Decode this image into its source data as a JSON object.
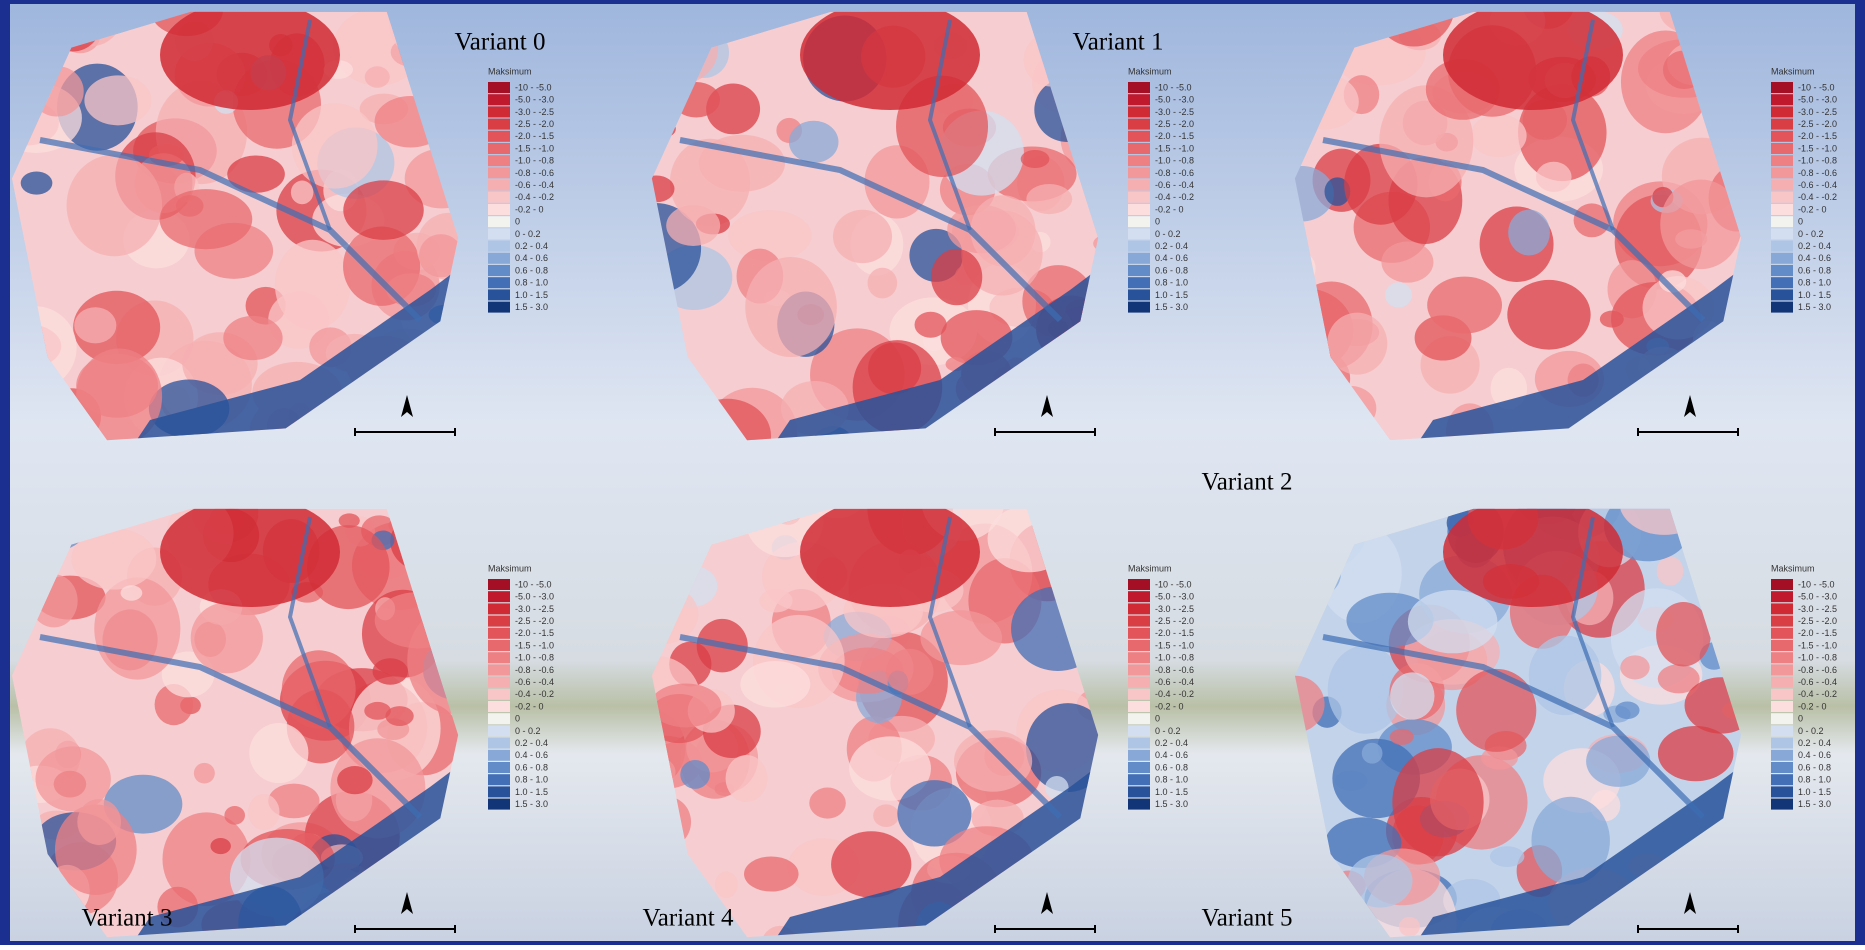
{
  "panels": [
    {
      "label": "Variant 0"
    },
    {
      "label": "Variant 1"
    },
    {
      "label": "Variant 2"
    },
    {
      "label": "Variant 3"
    },
    {
      "label": "Variant 4"
    },
    {
      "label": "Variant 5"
    }
  ],
  "legend": {
    "title": "Maksimum",
    "items": [
      {
        "label": "-10 - -5.0",
        "color": "#a50f25"
      },
      {
        "label": "-5.0 - -3.0",
        "color": "#c0182c"
      },
      {
        "label": "-3.0 - -2.5",
        "color": "#d02a34"
      },
      {
        "label": "-2.5 - -2.0",
        "color": "#da3e45"
      },
      {
        "label": "-2.0 - -1.5",
        "color": "#e25459"
      },
      {
        "label": "-1.5 - -1.0",
        "color": "#e8696d"
      },
      {
        "label": "-1.0 - -0.8",
        "color": "#ee8084"
      },
      {
        "label": "-0.8 - -0.6",
        "color": "#f2979a"
      },
      {
        "label": "-0.6 - -0.4",
        "color": "#f6afb1"
      },
      {
        "label": "-0.4 - -0.2",
        "color": "#f9c6c7"
      },
      {
        "label": "-0.2 - 0",
        "color": "#fcdede"
      },
      {
        "label": "0",
        "color": "#f2f2ee"
      },
      {
        "label": "0 - 0.2",
        "color": "#d3dff0"
      },
      {
        "label": "0.2 - 0.4",
        "color": "#aec5e5"
      },
      {
        "label": "0.4 - 0.6",
        "color": "#88a9d8"
      },
      {
        "label": "0.6 - 0.8",
        "color": "#628cc8"
      },
      {
        "label": "0.8 - 1.0",
        "color": "#426fb5"
      },
      {
        "label": "1.0 - 1.5",
        "color": "#28529a"
      },
      {
        "label": "1.5 - 3.0",
        "color": "#123577"
      }
    ]
  }
}
